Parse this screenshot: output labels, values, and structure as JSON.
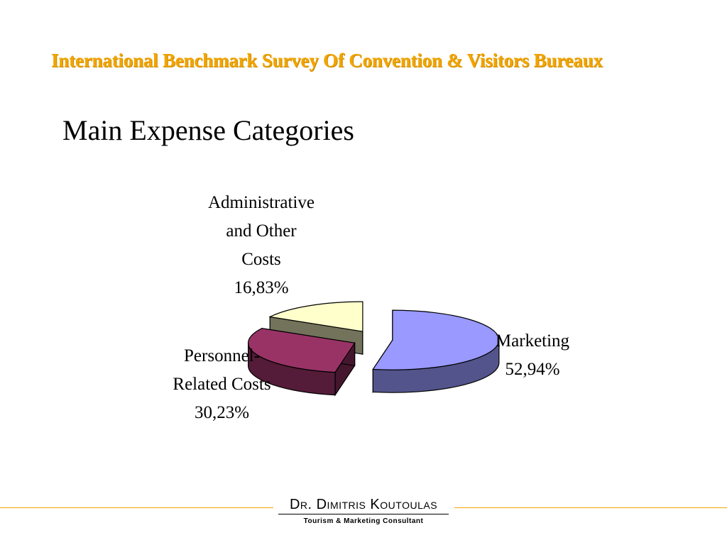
{
  "header": {
    "title": "International Benchmark Survey Of Convention & Visitors Bureaux"
  },
  "slide": {
    "title": "Main Expense Categories"
  },
  "chart_data": {
    "type": "pie",
    "style": "3d-exploded",
    "slices": [
      {
        "label_lines": [
          "Marketing",
          "52,94%"
        ],
        "category": "Marketing",
        "value": 52.94,
        "value_label": "52,94%",
        "color": "#9999ff"
      },
      {
        "label_lines": [
          "Personnel-",
          "Related Costs",
          "30,23%"
        ],
        "category": "Personnel-Related Costs",
        "value": 30.23,
        "value_label": "30,23%",
        "color": "#993366"
      },
      {
        "label_lines": [
          "Administrative",
          "and Other",
          "Costs",
          "16,83%"
        ],
        "category": "Administrative and Other Costs",
        "value": 16.83,
        "value_label": "16,83%",
        "color": "#ffffcc"
      }
    ]
  },
  "footer": {
    "name": "Dr. Dimitris Koutoulas",
    "subtitle": "Tourism & Marketing Consultant",
    "accent_color": "#f2a400"
  }
}
